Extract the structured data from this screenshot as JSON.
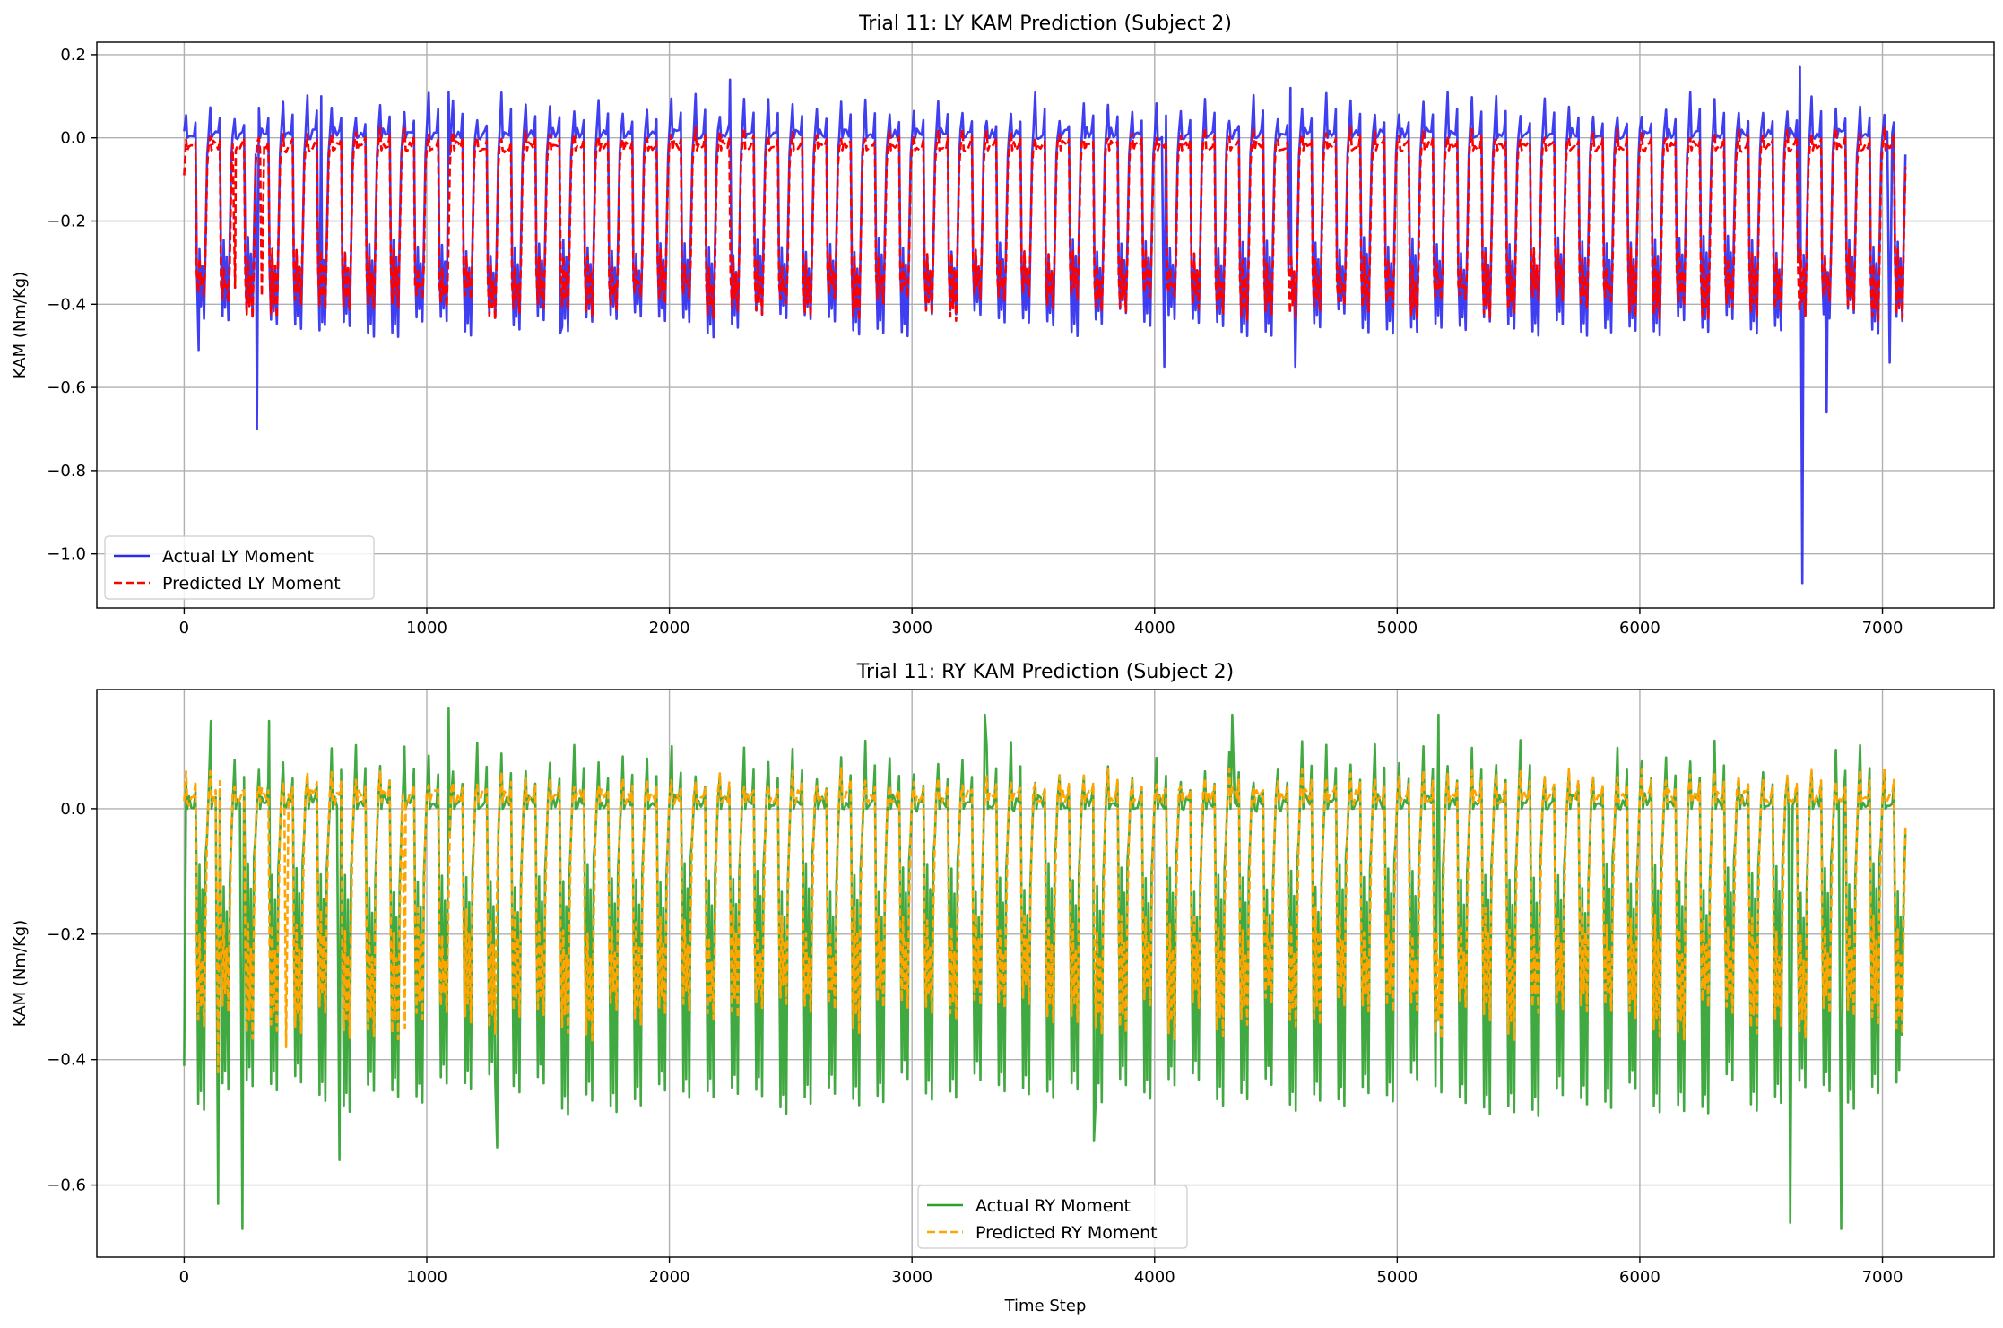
{
  "chart_data": [
    {
      "type": "line",
      "title": "Trial 11: LY KAM Prediction (Subject 2)",
      "xlabel": "",
      "ylabel": "KAM (Nm/Kg)",
      "xlim": [
        -360,
        7460
      ],
      "ylim": [
        -1.13,
        0.23
      ],
      "xticks": [
        0,
        1000,
        2000,
        3000,
        4000,
        5000,
        6000,
        7000
      ],
      "yticks": [
        0.2,
        0.0,
        -0.2,
        -0.4,
        -0.6,
        -0.8,
        -1.0
      ],
      "ytick_labels": [
        "0.2",
        "0.0",
        "−0.2",
        "−0.4",
        "−0.6",
        "−0.8",
        "−1.0"
      ],
      "xtick_labels": [
        "0",
        "1000",
        "2000",
        "3000",
        "4000",
        "5000",
        "6000",
        "7000"
      ],
      "grid": true,
      "legend_position": "lower-left",
      "gait_period": 100,
      "x_range": [
        0,
        7100
      ],
      "series": [
        {
          "name": "Actual LY Moment",
          "color": "#2a2af0",
          "style": "solid",
          "baseline": 0.01,
          "stance_level": -0.3,
          "stance_low": -0.44,
          "peaks": [
            [
              60,
              0.05
            ],
            [
              565,
              0.1
            ],
            [
              1090,
              0.11
            ],
            [
              2250,
              0.14
            ],
            [
              4560,
              0.12
            ],
            [
              6660,
              0.17
            ]
          ],
          "troughs": [
            [
              60,
              -0.51
            ],
            [
              300,
              -0.7
            ],
            [
              580,
              -0.45
            ],
            [
              1550,
              -0.47
            ],
            [
              4040,
              -0.55
            ],
            [
              4580,
              -0.55
            ],
            [
              6670,
              -1.07
            ],
            [
              6770,
              -0.66
            ],
            [
              7030,
              -0.54
            ]
          ]
        },
        {
          "name": "Predicted LY Moment",
          "color": "#ff0000",
          "style": "dashed",
          "baseline": -0.02,
          "stance_level": -0.33,
          "stance_low": -0.4,
          "peaks": [],
          "troughs": [
            [
              0,
              -0.09
            ],
            [
              210,
              -0.36
            ],
            [
              320,
              -0.38
            ]
          ]
        }
      ]
    },
    {
      "type": "line",
      "title": "Trial 11: RY KAM Prediction (Subject 2)",
      "xlabel": "Time Step",
      "ylabel": "KAM (Nm/Kg)",
      "xlim": [
        -360,
        7460
      ],
      "ylim": [
        -0.715,
        0.19
      ],
      "xticks": [
        0,
        1000,
        2000,
        3000,
        4000,
        5000,
        6000,
        7000
      ],
      "yticks": [
        0.0,
        -0.2,
        -0.4,
        -0.6
      ],
      "ytick_labels": [
        "0.0",
        "−0.2",
        "−0.4",
        "−0.6"
      ],
      "xtick_labels": [
        "0",
        "1000",
        "2000",
        "3000",
        "4000",
        "5000",
        "6000",
        "7000"
      ],
      "grid": true,
      "legend_position": "lower-center",
      "gait_period": 100,
      "x_range": [
        0,
        7100
      ],
      "series": [
        {
          "name": "Actual RY Moment",
          "color": "#2ca02c",
          "style": "solid",
          "baseline": 0.01,
          "stance_level": -0.15,
          "stance_low": -0.45,
          "peaks": [
            [
              110,
              0.14
            ],
            [
              350,
              0.14
            ],
            [
              1090,
              0.16
            ],
            [
              2010,
              0.1
            ],
            [
              3300,
              0.15
            ],
            [
              4320,
              0.15
            ],
            [
              5170,
              0.15
            ]
          ],
          "troughs": [
            [
              0,
              -0.41
            ],
            [
              140,
              -0.63
            ],
            [
              240,
              -0.67
            ],
            [
              640,
              -0.56
            ],
            [
              1290,
              -0.54
            ],
            [
              3750,
              -0.53
            ],
            [
              6620,
              -0.66
            ],
            [
              6830,
              -0.67
            ],
            [
              7080,
              -0.36
            ]
          ]
        },
        {
          "name": "Predicted RY Moment",
          "color": "#ffa500",
          "style": "dashed",
          "baseline": 0.02,
          "stance_level": -0.22,
          "stance_low": -0.33,
          "peaks": [],
          "troughs": [
            [
              140,
              -0.42
            ],
            [
              420,
              -0.38
            ],
            [
              910,
              -0.35
            ]
          ]
        }
      ]
    }
  ]
}
